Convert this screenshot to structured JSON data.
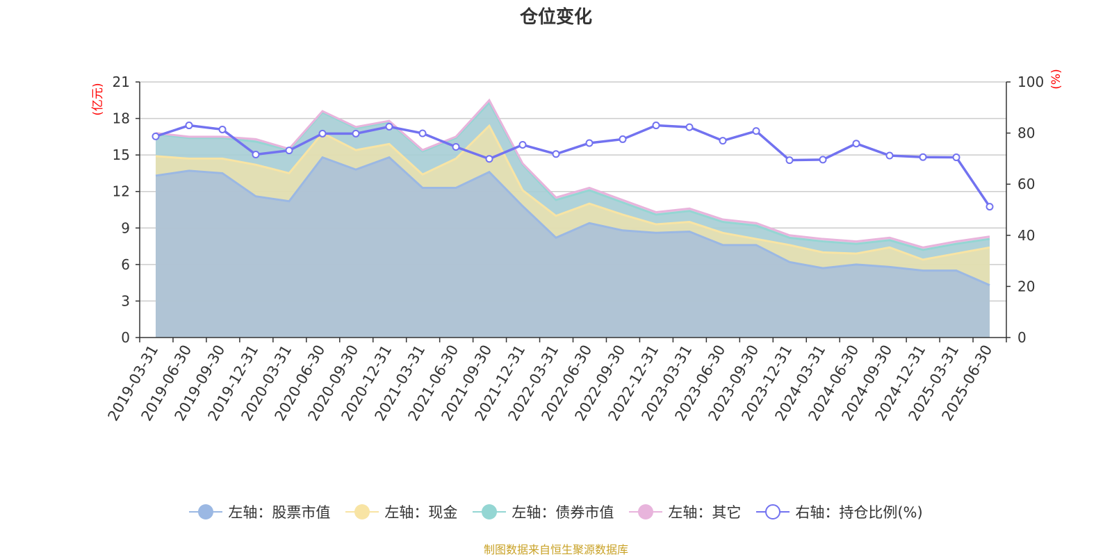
{
  "title": "仓位变化",
  "source_note": "制图数据来自恒生聚源数据库",
  "colors": {
    "stock": "#9bb8e3",
    "cash": "#f8e4a4",
    "bond": "#94d6d3",
    "other": "#e8b4dc",
    "ratio": "#7272f0",
    "axis_label": "#ff0000",
    "source": "#c9a227"
  },
  "legend": [
    {
      "label": "左轴：股票市值",
      "key": "stock",
      "style": "filled"
    },
    {
      "label": "左轴：现金",
      "key": "cash",
      "style": "filled"
    },
    {
      "label": "左轴：债券市值",
      "key": "bond",
      "style": "filled"
    },
    {
      "label": "左轴：其它",
      "key": "other",
      "style": "filled"
    },
    {
      "label": "右轴：持仓比例(%)",
      "key": "ratio",
      "style": "hollow"
    }
  ],
  "chart_data": {
    "type": "area",
    "stacked": true,
    "x": [
      "2019-03-31",
      "2019-06-30",
      "2019-09-30",
      "2019-12-31",
      "2020-03-31",
      "2020-06-30",
      "2020-09-30",
      "2020-12-31",
      "2021-03-31",
      "2021-06-30",
      "2021-09-30",
      "2021-12-31",
      "2022-03-31",
      "2022-06-30",
      "2022-09-30",
      "2022-12-31",
      "2023-03-31",
      "2023-06-30",
      "2023-09-30",
      "2023-12-31",
      "2024-03-31",
      "2024-06-30",
      "2024-09-30",
      "2024-12-31",
      "2025-03-31",
      "2025-06-30"
    ],
    "left_axis": {
      "label": "(亿元)",
      "min": 0,
      "max": 21,
      "ticks": [
        0,
        3,
        6,
        9,
        12,
        15,
        18,
        21
      ]
    },
    "right_axis": {
      "label": "(%)",
      "min": 0,
      "max": 100,
      "ticks": [
        0,
        20,
        40,
        60,
        80,
        100
      ]
    },
    "grid": true,
    "legend_position": "bottom",
    "series": [
      {
        "name": "左轴：股票市值",
        "key": "stock",
        "axis": "left",
        "values": [
          13.3,
          13.7,
          13.5,
          11.6,
          11.2,
          14.8,
          13.8,
          14.8,
          12.3,
          12.3,
          13.6,
          10.8,
          8.2,
          9.4,
          8.8,
          8.6,
          8.7,
          7.6,
          7.6,
          6.2,
          5.7,
          6.0,
          5.8,
          5.5,
          5.5,
          4.3
        ]
      },
      {
        "name": "左轴：现金",
        "key": "cash",
        "axis": "left",
        "values": [
          1.6,
          1.0,
          1.2,
          2.6,
          2.3,
          2.0,
          1.6,
          1.1,
          1.1,
          2.4,
          3.8,
          1.3,
          1.8,
          1.6,
          1.3,
          0.7,
          0.8,
          1.0,
          0.5,
          1.4,
          1.3,
          0.9,
          1.6,
          0.9,
          1.4,
          3.1
        ]
      },
      {
        "name": "左轴：债券市值",
        "key": "bond",
        "axis": "left",
        "values": [
          1.8,
          1.7,
          1.7,
          1.9,
          1.9,
          1.7,
          1.8,
          1.8,
          1.9,
          1.7,
          1.9,
          2.1,
          1.3,
          1.1,
          1.0,
          0.8,
          0.9,
          0.9,
          1.1,
          0.6,
          0.9,
          0.8,
          0.6,
          0.8,
          0.8,
          0.7
        ]
      },
      {
        "name": "左轴：其它",
        "key": "other",
        "axis": "left",
        "values": [
          0.1,
          0.1,
          0.1,
          0.2,
          0.1,
          0.1,
          0.1,
          0.1,
          0.1,
          0.1,
          0.2,
          0.1,
          0.2,
          0.2,
          0.2,
          0.2,
          0.2,
          0.2,
          0.2,
          0.2,
          0.2,
          0.2,
          0.2,
          0.2,
          0.2,
          0.2
        ]
      },
      {
        "name": "右轴：持仓比例(%)",
        "key": "ratio",
        "axis": "right",
        "type": "line",
        "values": [
          78.7,
          83.0,
          81.4,
          71.6,
          73.2,
          79.8,
          79.8,
          82.5,
          79.9,
          74.6,
          69.9,
          75.4,
          71.8,
          76.1,
          77.6,
          83.0,
          82.3,
          77.0,
          80.8,
          69.4,
          69.6,
          75.9,
          71.2,
          70.6,
          70.5,
          51.2
        ]
      }
    ]
  }
}
